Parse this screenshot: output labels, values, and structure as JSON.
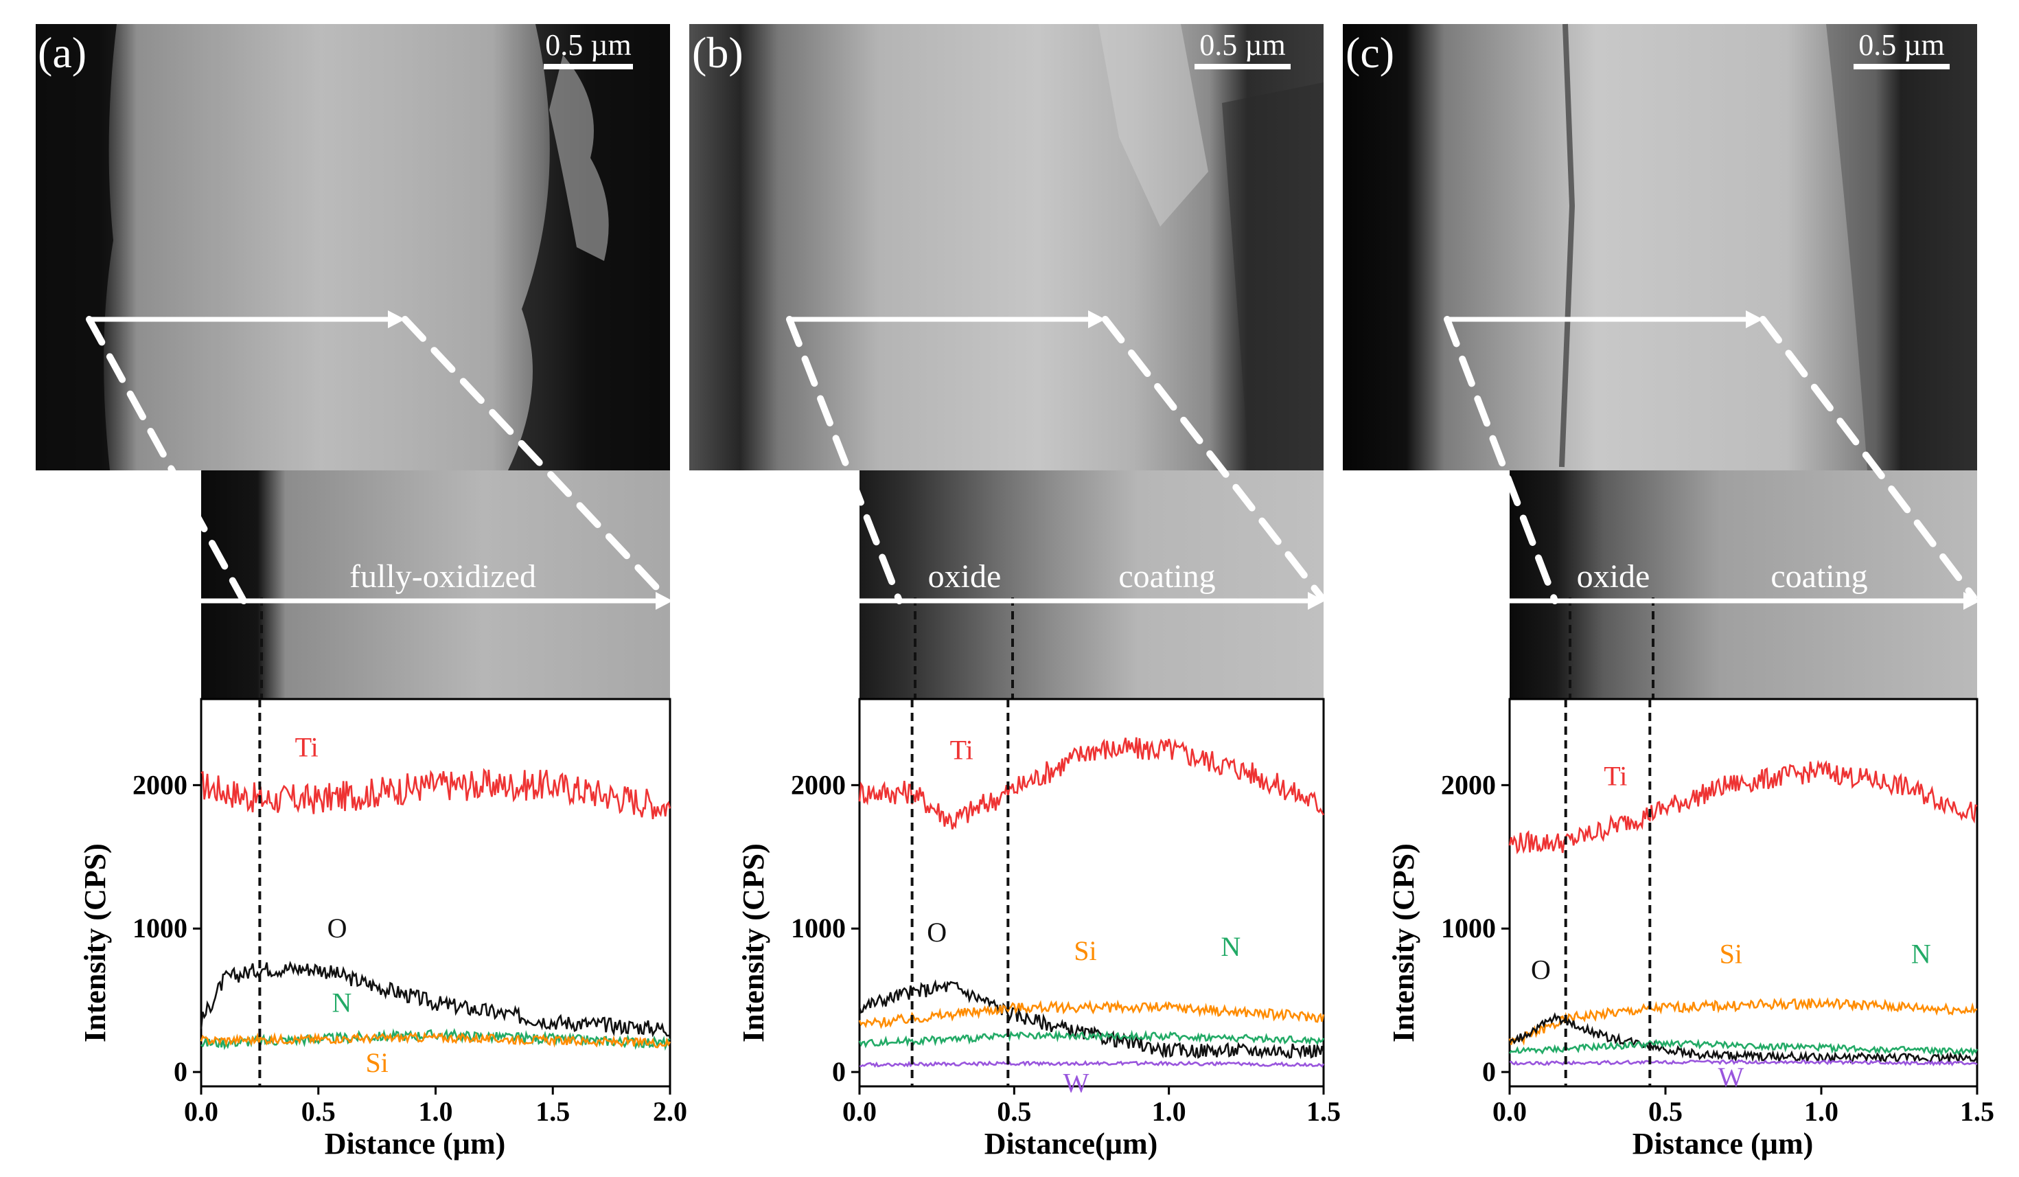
{
  "panels": [
    {
      "label": "(a)",
      "scale_bar": "0.5 µm",
      "zones": [
        "fully-oxidized"
      ],
      "chart_data": {
        "type": "line",
        "xlabel": "Distance (µm)",
        "ylabel": "Intensity (CPS)",
        "xlim": [
          0.0,
          2.0
        ],
        "ylim": [
          -100,
          2600
        ],
        "xticks": [
          "0.0",
          "0.5",
          "1.0",
          "1.5",
          "2.0"
        ],
        "yticks": [
          "0",
          "1000",
          "2000"
        ],
        "boundaries": [
          0.25
        ],
        "series": [
          {
            "name": "Ti",
            "color": "#ee3333",
            "noise": 110,
            "x": [
              0.0,
              0.25,
              0.5,
              1.0,
              1.5,
              2.0
            ],
            "y": [
              2000,
              1900,
              1900,
              2000,
              2000,
              1850
            ]
          },
          {
            "name": "O",
            "color": "#111111",
            "noise": 55,
            "x": [
              0.0,
              0.1,
              0.25,
              0.5,
              0.7,
              1.0,
              1.5,
              2.0
            ],
            "y": [
              350,
              650,
              720,
              720,
              620,
              480,
              350,
              300
            ]
          },
          {
            "name": "N",
            "color": "#22aa66",
            "noise": 35,
            "x": [
              0.0,
              1.0,
              2.0
            ],
            "y": [
              200,
              260,
              200
            ]
          },
          {
            "name": "Si",
            "color": "#ff8c00",
            "noise": 30,
            "x": [
              0.0,
              1.0,
              2.0
            ],
            "y": [
              220,
              240,
              200
            ]
          }
        ],
        "annotations": [
          {
            "text": "Ti",
            "x": 0.45,
            "y": 2200
          },
          {
            "text": "O",
            "x": 0.58,
            "y": 940
          },
          {
            "text": "N",
            "x": 0.6,
            "y": 420
          },
          {
            "text": "Si",
            "x": 0.75,
            "y": 0
          }
        ]
      }
    },
    {
      "label": "(b)",
      "scale_bar": "0.5 µm",
      "zones": [
        "oxide",
        "coating"
      ],
      "chart_data": {
        "type": "line",
        "xlabel": "Distance(µm)",
        "ylabel": "Intensity (CPS)",
        "xlim": [
          0.0,
          1.5
        ],
        "ylim": [
          -100,
          2600
        ],
        "xticks": [
          "0.0",
          "0.5",
          "1.0",
          "1.5"
        ],
        "yticks": [
          "0",
          "1000",
          "2000"
        ],
        "boundaries": [
          0.17,
          0.48
        ],
        "series": [
          {
            "name": "Ti",
            "color": "#ee3333",
            "noise": 85,
            "x": [
              0.0,
              0.17,
              0.3,
              0.48,
              0.75,
              1.0,
              1.25,
              1.5
            ],
            "y": [
              1950,
              1950,
              1750,
              1950,
              2250,
              2250,
              2100,
              1850
            ]
          },
          {
            "name": "O",
            "color": "#111111",
            "noise": 50,
            "x": [
              0.0,
              0.15,
              0.3,
              0.5,
              0.7,
              1.0,
              1.5
            ],
            "y": [
              450,
              550,
              600,
              400,
              280,
              150,
              150
            ]
          },
          {
            "name": "Si",
            "color": "#ff8c00",
            "noise": 35,
            "x": [
              0.0,
              0.5,
              1.0,
              1.5
            ],
            "y": [
              330,
              450,
              450,
              380
            ]
          },
          {
            "name": "N",
            "color": "#22aa66",
            "noise": 25,
            "x": [
              0.0,
              0.5,
              1.0,
              1.5
            ],
            "y": [
              200,
              250,
              250,
              220
            ]
          },
          {
            "name": "W",
            "color": "#9955dd",
            "noise": 12,
            "x": [
              0.0,
              0.5,
              1.0,
              1.5
            ],
            "y": [
              50,
              60,
              60,
              50
            ]
          }
        ],
        "annotations": [
          {
            "text": "Ti",
            "x": 0.33,
            "y": 2180
          },
          {
            "text": "O",
            "x": 0.25,
            "y": 910
          },
          {
            "text": "Si",
            "x": 0.73,
            "y": 780
          },
          {
            "text": "N",
            "x": 1.2,
            "y": 810
          },
          {
            "text": "W",
            "x": 0.7,
            "y": -140
          }
        ]
      }
    },
    {
      "label": "(c)",
      "scale_bar": "0.5 µm",
      "zones": [
        "oxide",
        "coating"
      ],
      "chart_data": {
        "type": "line",
        "xlabel": "Distance (µm)",
        "ylabel": "Intensity (CPS)",
        "xlim": [
          0.0,
          1.5
        ],
        "ylim": [
          -100,
          2600
        ],
        "xticks": [
          "0.0",
          "0.5",
          "1.0",
          "1.5"
        ],
        "yticks": [
          "0",
          "1000",
          "2000"
        ],
        "boundaries": [
          0.18,
          0.45
        ],
        "series": [
          {
            "name": "Ti",
            "color": "#ee3333",
            "noise": 75,
            "x": [
              0.0,
              0.18,
              0.45,
              0.7,
              1.0,
              1.25,
              1.5
            ],
            "y": [
              1600,
              1600,
              1800,
              2000,
              2100,
              2000,
              1800
            ]
          },
          {
            "name": "Si",
            "color": "#ff8c00",
            "noise": 35,
            "x": [
              0.0,
              0.2,
              0.5,
              1.0,
              1.5
            ],
            "y": [
              200,
              380,
              450,
              480,
              430
            ]
          },
          {
            "name": "O",
            "color": "#111111",
            "noise": 30,
            "x": [
              0.0,
              0.15,
              0.3,
              0.6,
              1.0,
              1.5
            ],
            "y": [
              200,
              380,
              250,
              120,
              100,
              100
            ]
          },
          {
            "name": "N",
            "color": "#22aa66",
            "noise": 22,
            "x": [
              0.0,
              0.5,
              1.0,
              1.5
            ],
            "y": [
              140,
              200,
              170,
              140
            ]
          },
          {
            "name": "W",
            "color": "#9955dd",
            "noise": 12,
            "x": [
              0.0,
              0.5,
              1.0,
              1.5
            ],
            "y": [
              60,
              70,
              70,
              60
            ]
          }
        ],
        "annotations": [
          {
            "text": "Ti",
            "x": 0.34,
            "y": 2000
          },
          {
            "text": "O",
            "x": 0.1,
            "y": 650
          },
          {
            "text": "Si",
            "x": 0.71,
            "y": 760
          },
          {
            "text": "N",
            "x": 1.32,
            "y": 760
          },
          {
            "text": "W",
            "x": 0.71,
            "y": -100
          }
        ]
      }
    }
  ]
}
